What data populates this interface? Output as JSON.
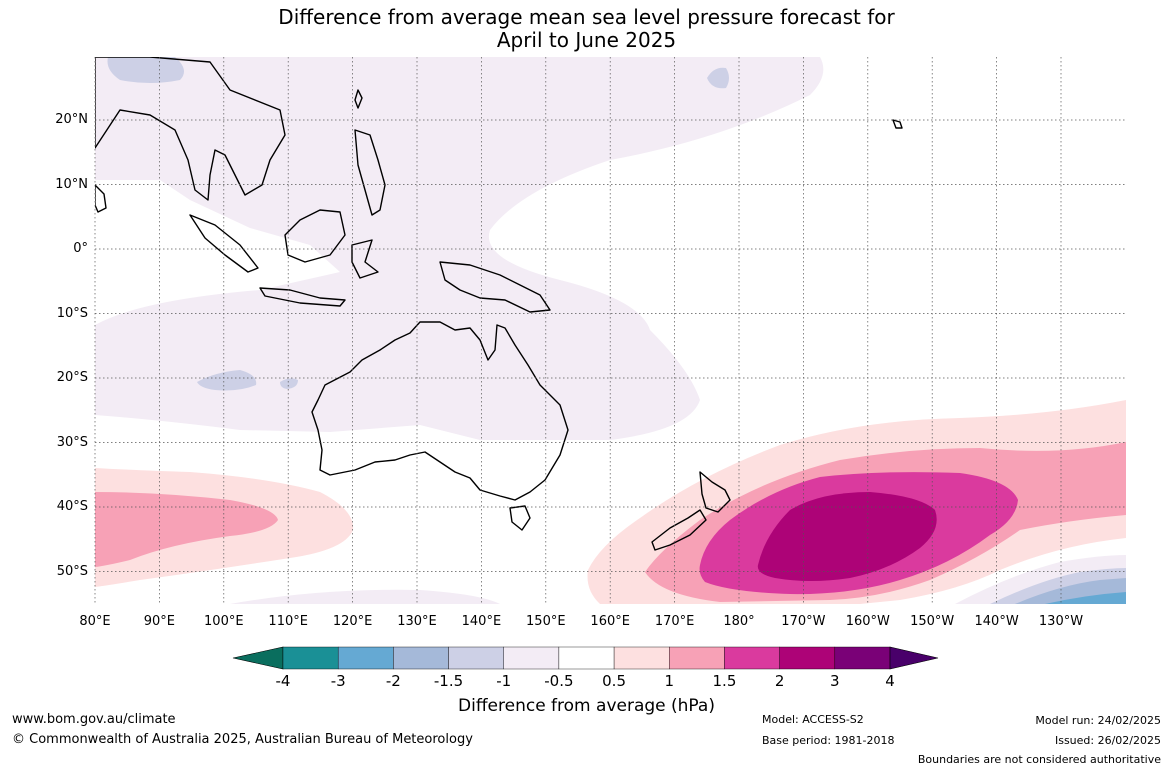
{
  "title": {
    "line1": "Difference from average mean sea level pressure forecast for",
    "line2": "April to June 2025"
  },
  "map": {
    "lat_labels": [
      "20°N",
      "10°N",
      "0°",
      "10°S",
      "20°S",
      "30°S",
      "40°S",
      "50°S"
    ],
    "lon_labels": [
      "80°E",
      "90°E",
      "100°E",
      "110°E",
      "120°E",
      "130°E",
      "140°E",
      "150°E",
      "160°E",
      "170°E",
      "180°",
      "170°W",
      "160°W",
      "150°W",
      "140°W",
      "130°W"
    ],
    "land_outline_color": "#000000",
    "grid_style": "dotted"
  },
  "colorbar": {
    "tick_labels": [
      "-4",
      "-3",
      "-2",
      "-1.5",
      "-1",
      "-0.5",
      "0.5",
      "1",
      "1.5",
      "2",
      "3",
      "4"
    ],
    "colors": [
      "#0a6e5e",
      "#1a9096",
      "#65a9d3",
      "#a5b9d9",
      "#cdd0e6",
      "#f3ecf5",
      "#ffffff",
      "#fde0e0",
      "#f7a1b6",
      "#da3a9e",
      "#ad0377",
      "#7a0177",
      "#49006a"
    ],
    "title": "Difference from average (hPa)"
  },
  "footer": {
    "website": "www.bom.gov.au/climate",
    "copyright": "© Commonwealth of Australia 2025, Australian Bureau of Meteorology",
    "model": "Model: ACCESS-S2",
    "base_period": "Base period: 1981-2018",
    "model_run": "Model run: 24/02/2025",
    "issued": "Issued: 26/02/2025",
    "disclaimer": "Boundaries are not considered authoritative"
  }
}
